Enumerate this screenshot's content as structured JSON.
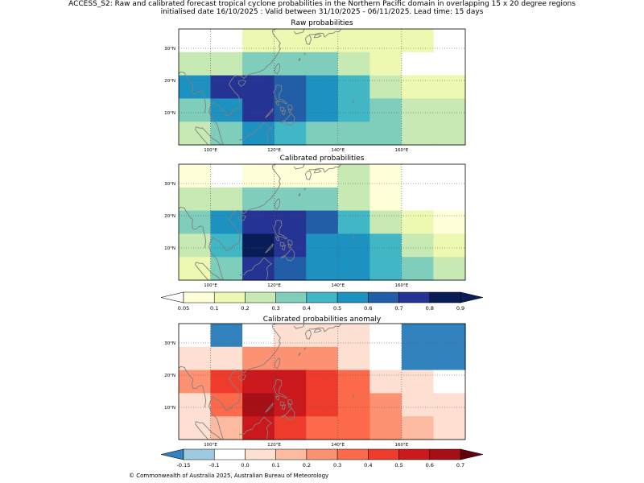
{
  "header": {
    "line1": "ACCESS_S2: Raw and calibrated forecast tropical cyclone probabilities in the Northern Pacific domain in overlapping 15 x 20 degree regions",
    "line2": "initialised date 16/10/2025 :  Valid between 31/10/2025 - 06/11/2025. Lead time: 15 days"
  },
  "panels": [
    {
      "title": "Raw probabilities",
      "cmap": "prob",
      "grid": [
        [
          0.0,
          0.0,
          0.1,
          0.1,
          0.1,
          0.1,
          0.15,
          0.1,
          0.0
        ],
        [
          0.25,
          0.25,
          0.35,
          0.35,
          0.35,
          0.25,
          0.15,
          0.0,
          0.0
        ],
        [
          0.55,
          0.75,
          0.75,
          0.65,
          0.55,
          0.45,
          0.25,
          0.15,
          0.15
        ],
        [
          0.35,
          0.55,
          0.75,
          0.65,
          0.55,
          0.45,
          0.35,
          0.25,
          0.25
        ],
        [
          0.25,
          0.35,
          0.55,
          0.45,
          0.35,
          0.35,
          0.35,
          0.25,
          0.25
        ]
      ]
    },
    {
      "title": "Calibrated probabilities",
      "cmap": "prob",
      "grid": [
        [
          0.08,
          0.0,
          0.08,
          0.08,
          0.08,
          0.25,
          0.08,
          0.0,
          0.0
        ],
        [
          0.25,
          0.25,
          0.35,
          0.35,
          0.35,
          0.25,
          0.08,
          0.0,
          0.0
        ],
        [
          0.35,
          0.55,
          0.75,
          0.75,
          0.65,
          0.45,
          0.25,
          0.15,
          0.08
        ],
        [
          0.25,
          0.45,
          0.85,
          0.75,
          0.55,
          0.55,
          0.45,
          0.25,
          0.15
        ],
        [
          0.15,
          0.35,
          0.75,
          0.65,
          0.55,
          0.55,
          0.45,
          0.35,
          0.25
        ]
      ]
    },
    {
      "title": "Calibrated probabilities anomaly",
      "cmap": "anom",
      "grid": [
        [
          -0.05,
          -0.2,
          -0.05,
          0.0,
          0.0,
          0.0,
          -0.05,
          -0.2,
          -0.2
        ],
        [
          0.05,
          0.05,
          0.25,
          0.25,
          0.25,
          0.05,
          -0.05,
          -0.2,
          -0.2
        ],
        [
          0.25,
          0.45,
          0.55,
          0.55,
          0.45,
          0.35,
          0.05,
          0.0,
          -0.05
        ],
        [
          0.05,
          0.35,
          0.65,
          0.55,
          0.45,
          0.35,
          0.25,
          0.05,
          0.0
        ],
        [
          0.0,
          0.15,
          0.55,
          0.45,
          0.35,
          0.35,
          0.25,
          0.15,
          0.05
        ]
      ]
    }
  ],
  "map": {
    "lon_range": [
      90,
      180
    ],
    "lat_range": [
      0,
      36
    ],
    "lon_ticks": [
      "100°E",
      "120°E",
      "140°E",
      "160°E"
    ],
    "lon_tick_values": [
      100,
      120,
      140,
      160
    ],
    "lat_ticks": [
      "30°N",
      "20°N",
      "10°N"
    ],
    "lat_tick_values": [
      30,
      20,
      10
    ],
    "coastline_color": "#808080",
    "gridline_color": "#555555"
  },
  "colorbars": {
    "prob": {
      "labels": [
        "0.05",
        "0.1",
        "0.2",
        "0.3",
        "0.4",
        "0.5",
        "0.6",
        "0.7",
        "0.8",
        "0.9"
      ],
      "bounds": [
        0.05,
        0.1,
        0.2,
        0.3,
        0.4,
        0.5,
        0.6,
        0.7,
        0.8,
        0.9
      ],
      "under": "#ffffff",
      "over": "#081d58",
      "colors": [
        "#ffffd9",
        "#edf8b1",
        "#c7e9b4",
        "#7fcdbb",
        "#41b6c4",
        "#1d91c0",
        "#225ea8",
        "#253494",
        "#081d58"
      ]
    },
    "anom": {
      "labels": [
        "-0.15",
        "-0.1",
        "0.0",
        "0.1",
        "0.2",
        "0.3",
        "0.4",
        "0.5",
        "0.6",
        "0.7"
      ],
      "bounds": [
        -0.15,
        -0.1,
        0.0,
        0.1,
        0.2,
        0.3,
        0.4,
        0.5,
        0.6,
        0.7
      ],
      "under": "#3182bd",
      "over": "#67000d",
      "colors": [
        "#9ecae1",
        "#ffffff",
        "#fee0d2",
        "#fcbba1",
        "#fc9272",
        "#fb6a4a",
        "#ef3b2c",
        "#cb181d",
        "#a50f15"
      ]
    }
  },
  "footer": {
    "copyright": "© Commonwealth of Australia 2025, Australian Bureau of Meteorology"
  }
}
